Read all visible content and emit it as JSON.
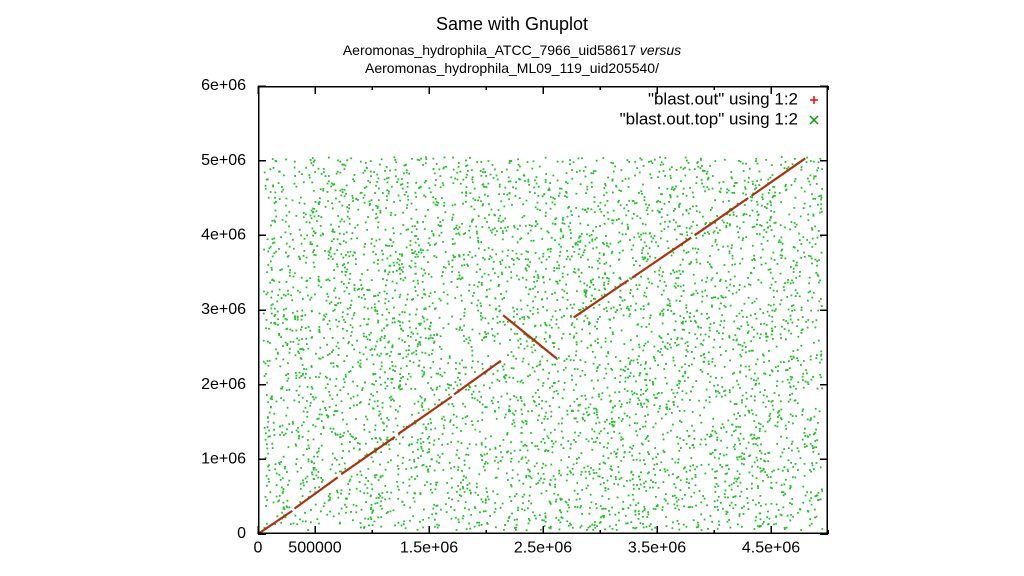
{
  "title": "Same with Gnuplot",
  "subtitle_line1_a": "Aeromonas_hydrophila_ATCC_7966_uid58617 ",
  "subtitle_line1_b": "versus",
  "subtitle_line2": "Aeromonas_hydrophila_ML09_119_uid205540/",
  "chart": {
    "type": "scatter",
    "background_color": "#ffffff",
    "axis_color": "#000000",
    "font_family": "Arial",
    "tick_fontsize": 16,
    "tick_length": 8,
    "minor_tick_length": 4,
    "border_width": 1.5,
    "xlim": [
      0,
      5000000
    ],
    "ylim": [
      0,
      6000000
    ],
    "xticks": [
      {
        "v": 0,
        "label": "0"
      },
      {
        "v": 500000,
        "label": "500000"
      },
      {
        "v": 1500000,
        "label": "1.5e+06"
      },
      {
        "v": 2500000,
        "label": "2.5e+06"
      },
      {
        "v": 3500000,
        "label": "3.5e+06"
      },
      {
        "v": 4500000,
        "label": "4.5e+06"
      }
    ],
    "xminor": [
      1000000,
      2000000,
      3000000,
      4000000,
      5000000
    ],
    "yticks": [
      {
        "v": 0,
        "label": "0"
      },
      {
        "v": 1000000,
        "label": "1e+06"
      },
      {
        "v": 2000000,
        "label": "2e+06"
      },
      {
        "v": 3000000,
        "label": "3e+06"
      },
      {
        "v": 4000000,
        "label": "4e+06"
      },
      {
        "v": 5000000,
        "label": "5e+06"
      },
      {
        "v": 6000000,
        "label": "6e+06"
      }
    ],
    "legend": {
      "fontsize": 17,
      "x_text": 540,
      "y_start": 14,
      "line_gap": 20,
      "sample_x1": 546,
      "sample_x2": 566,
      "items": [
        {
          "label": "\"blast.out\" using 1:2",
          "color": "#ff0000",
          "marker": "plus"
        },
        {
          "label": "\"blast.out.top\" using 1:2",
          "color": "#00a000",
          "marker": "x"
        }
      ]
    },
    "series_scatter": {
      "color": "#22c02a",
      "marker_size": 0.9,
      "yspan": [
        50000,
        5050000
      ],
      "n_points": 5200,
      "xspan": [
        50000,
        4950000
      ]
    },
    "series_diag": {
      "color": "#b03010",
      "width": 2.2,
      "segments": [
        {
          "x1": 0,
          "y1": 0,
          "x2": 300000,
          "y2": 310000
        },
        {
          "x1": 320000,
          "y1": 340000,
          "x2": 700000,
          "y2": 760000
        },
        {
          "x1": 730000,
          "y1": 800000,
          "x2": 1200000,
          "y2": 1300000
        },
        {
          "x1": 1230000,
          "y1": 1340000,
          "x2": 1700000,
          "y2": 1840000
        },
        {
          "x1": 1720000,
          "y1": 1870000,
          "x2": 2130000,
          "y2": 2320000
        },
        {
          "x1": 2150000,
          "y1": 2930000,
          "x2": 2620000,
          "y2": 2350000
        },
        {
          "x1": 2770000,
          "y1": 2900000,
          "x2": 3250000,
          "y2": 3400000
        },
        {
          "x1": 3280000,
          "y1": 3430000,
          "x2": 3800000,
          "y2": 3970000
        },
        {
          "x1": 3830000,
          "y1": 4000000,
          "x2": 4300000,
          "y2": 4500000
        },
        {
          "x1": 4330000,
          "y1": 4530000,
          "x2": 4800000,
          "y2": 5030000
        }
      ]
    }
  }
}
